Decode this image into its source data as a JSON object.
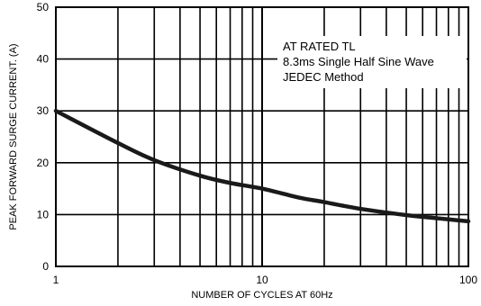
{
  "chart_data": {
    "type": "line",
    "title": "",
    "xlabel": "NUMBER OF CYCLES AT 60Hz",
    "ylabel": "PEAK FORWARD SURGE CURRENT. (A)",
    "x_scale": "log",
    "xlim": [
      1,
      100
    ],
    "ylim": [
      0,
      50
    ],
    "grid": true,
    "x_ticks": [
      "1",
      "10",
      "100"
    ],
    "y_ticks": [
      "0",
      "10",
      "20",
      "30",
      "40",
      "50"
    ],
    "annotations": [
      "AT RATED TL",
      "8.3ms Single Half Sine Wave",
      "JEDEC Method"
    ],
    "series": [
      {
        "x": [
          1,
          2,
          3,
          5,
          7,
          10,
          15,
          20,
          30,
          50,
          70,
          100
        ],
        "y": [
          30,
          23.8,
          20.5,
          17.5,
          16.1,
          15,
          13.3,
          12.4,
          11.1,
          9.9,
          9.3,
          8.7
        ]
      }
    ]
  }
}
